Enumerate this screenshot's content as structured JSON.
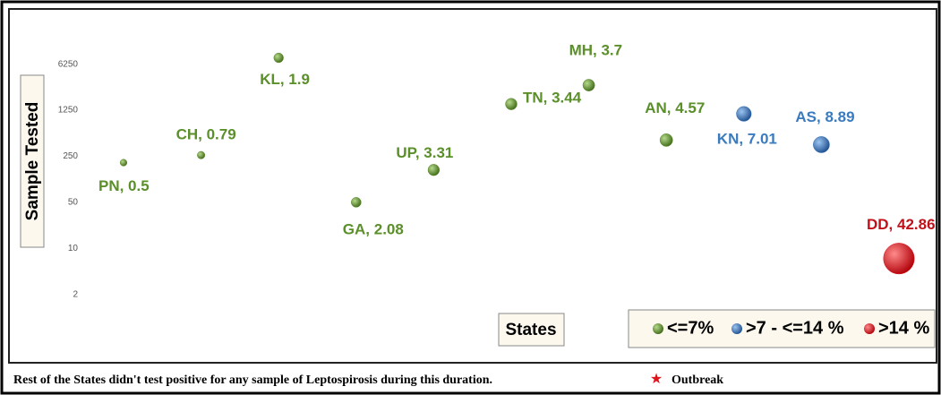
{
  "chart_data": {
    "type": "bubble",
    "y_axis_label": "Sample Tested",
    "x_axis_label": "States",
    "log_scale": true,
    "grid": false,
    "ylim": [
      1.2,
      23000
    ],
    "yticks": [
      2,
      10,
      50,
      250,
      1250,
      6250
    ],
    "series": [
      {
        "name": "<=7%",
        "color": "#5b8a2c",
        "label_color": "#5a8f2a",
        "labels": [
          "PN, 0.5",
          "CH, 0.79",
          "KL, 1.9",
          "GA, 2.08",
          "UP, 3.31",
          "TN, 3.44",
          "MH, 3.7",
          "AN, 4.57"
        ],
        "values": [
          200,
          260,
          7800,
          50,
          155,
          1550,
          3000,
          440
        ],
        "sizes": [
          0.5,
          0.79,
          1.9,
          2.08,
          3.31,
          3.44,
          3.7,
          4.57
        ]
      },
      {
        "name": ">7 - <=14 %",
        "color": "#2f6db5",
        "label_color": "#3a7bbf",
        "labels": [
          "KN, 7.01",
          "AS, 8.89"
        ],
        "values": [
          1100,
          375
        ],
        "sizes": [
          7.01,
          8.89
        ]
      },
      {
        "name": ">14 %",
        "color": "#e0141c",
        "label_color": "#c0121a",
        "labels": [
          "DD, 42.86"
        ],
        "values": [
          7
        ],
        "sizes": [
          42.86
        ]
      }
    ],
    "footnote": "Rest of the States didn't test positive for any sample of Leptospirosis  during this duration.",
    "annotation": "Outbreak"
  }
}
